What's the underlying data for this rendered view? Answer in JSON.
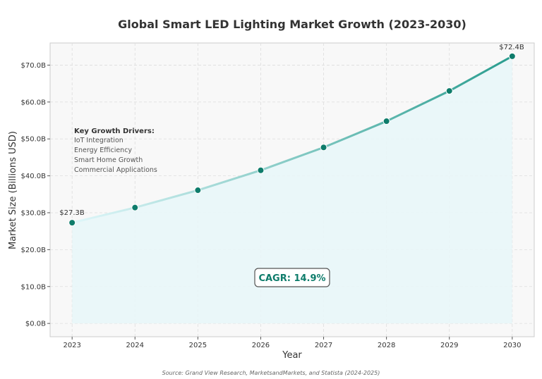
{
  "chart_data": {
    "type": "line",
    "title": "Global Smart LED Lighting Market Growth (2023-2030)",
    "xlabel": "Year",
    "ylabel": "Market Size (Billions USD)",
    "x": [
      2023,
      2024,
      2025,
      2026,
      2027,
      2028,
      2029,
      2030
    ],
    "values": [
      27.3,
      31.4,
      36.1,
      41.5,
      47.7,
      54.8,
      63.0,
      72.4
    ],
    "xlim": [
      2022.65,
      2030.35
    ],
    "ylim": [
      -3.6,
      76
    ],
    "yticks": [
      0,
      10,
      20,
      30,
      40,
      50,
      60,
      70
    ],
    "ytick_labels": [
      "$0.0B",
      "$10.0B",
      "$20.0B",
      "$30.0B",
      "$40.0B",
      "$50.0B",
      "$60.0B",
      "$70.0B"
    ],
    "xtick_labels": [
      "2023",
      "2024",
      "2025",
      "2026",
      "2027",
      "2028",
      "2029",
      "2030"
    ],
    "grid": true,
    "area_fill": true,
    "point_labels": {
      "first": "$27.3B",
      "last": "$72.4B"
    },
    "annotations": {
      "drivers_title": "Key Growth Drivers:",
      "drivers": [
        "IoT Integration",
        "Energy Efficiency",
        "Smart Home Growth",
        "Commercial Applications"
      ],
      "cagr": "CAGR: 14.9%"
    },
    "source": "Source: Grand View Research, MarketsandMarkets, and Statista (2024-2025)",
    "colors": {
      "line_start": "#e0f7fa",
      "line_end": "#2a9d8f",
      "marker": "#0e7c6b",
      "area": "#e8f6f8",
      "plot_bg": "#f8f8f8",
      "cagr_text": "#0e7c6b"
    }
  }
}
